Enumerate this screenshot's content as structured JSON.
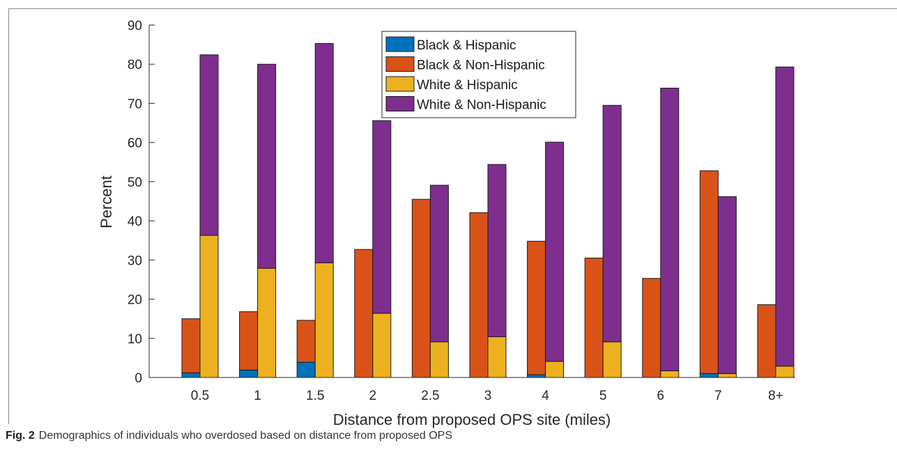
{
  "caption": {
    "label": "Fig. 2",
    "text": "Demographics of individuals who overdosed based on distance from proposed OPS"
  },
  "chart_data": {
    "type": "bar",
    "layout": "grouped-stacked",
    "title": "",
    "xlabel": "Distance from proposed OPS site (miles)",
    "ylabel": "Percent",
    "ylim": [
      0,
      90
    ],
    "yticks": [
      0,
      10,
      20,
      30,
      40,
      50,
      60,
      70,
      80,
      90
    ],
    "grid": false,
    "legend_position": "top-center",
    "categories": [
      "0.5",
      "1",
      "1.5",
      "2",
      "2.5",
      "3",
      "4",
      "5",
      "6",
      "7",
      "8+"
    ],
    "groups": [
      {
        "name": "Black",
        "stack": [
          "Black & Hispanic",
          "Black & Non-Hispanic"
        ],
        "totals": [
          15.0,
          16.8,
          14.6,
          32.7,
          45.5,
          42.1,
          34.8,
          30.5,
          25.3,
          52.8,
          18.6
        ]
      },
      {
        "name": "White",
        "stack": [
          "White & Hispanic",
          "White & Non-Hispanic"
        ],
        "totals": [
          82.4,
          80.0,
          85.3,
          65.6,
          49.1,
          54.4,
          60.1,
          69.5,
          73.9,
          46.2,
          79.3
        ]
      }
    ],
    "series": [
      {
        "name": "Black & Hispanic",
        "color": "#0072BD",
        "group": 0,
        "values": [
          1.2,
          1.9,
          3.9,
          0,
          0,
          0,
          0.7,
          0,
          0,
          1.0,
          0
        ]
      },
      {
        "name": "Black & Non-Hispanic",
        "color": "#D95319",
        "group": 0,
        "values": [
          13.8,
          14.9,
          10.7,
          32.7,
          45.5,
          42.1,
          34.1,
          30.5,
          25.3,
          51.8,
          18.6
        ]
      },
      {
        "name": "White & Hispanic",
        "color": "#EDB120",
        "group": 1,
        "values": [
          36.3,
          27.9,
          29.3,
          16.4,
          9.1,
          10.4,
          4.1,
          9.1,
          1.7,
          1.0,
          2.9
        ]
      },
      {
        "name": "White & Non-Hispanic",
        "color": "#7E2F8E",
        "group": 1,
        "values": [
          46.1,
          52.1,
          56.0,
          49.2,
          40.0,
          44.0,
          56.0,
          60.4,
          72.2,
          45.2,
          76.4
        ]
      }
    ]
  }
}
